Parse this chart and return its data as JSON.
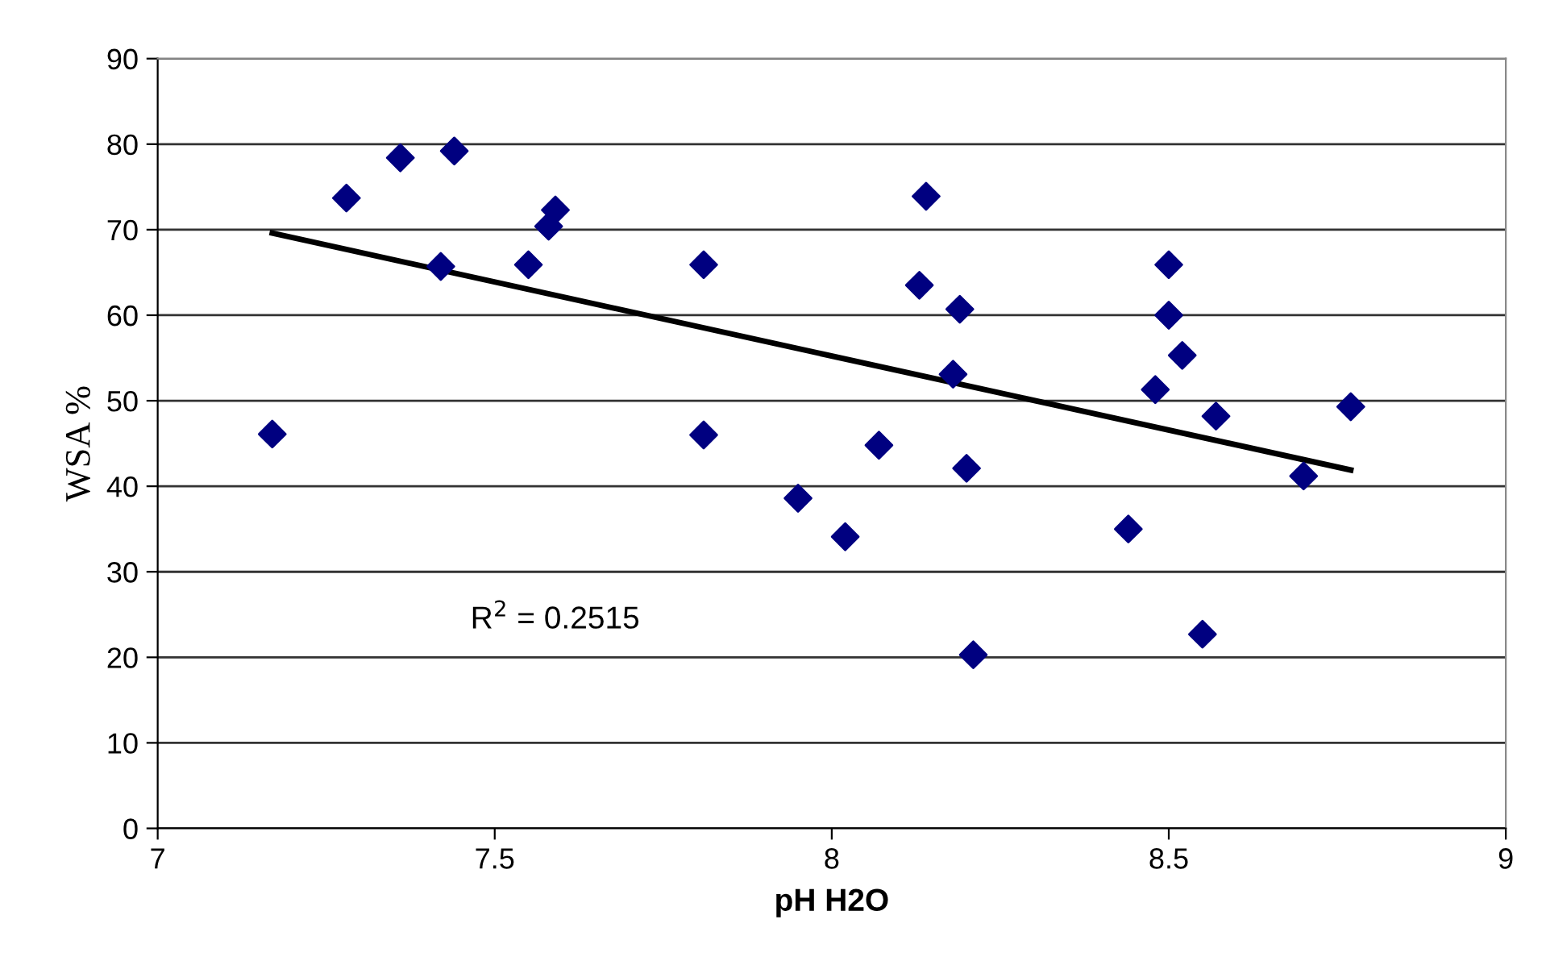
{
  "chart_data": {
    "type": "scatter",
    "xlabel": "pH H2O",
    "ylabel": "WSA %",
    "xlim": [
      7,
      9
    ],
    "xticks": [
      7,
      7.5,
      8,
      8.5,
      9
    ],
    "ylim": [
      0,
      90
    ],
    "yticks": [
      0,
      10,
      20,
      30,
      40,
      50,
      60,
      70,
      80,
      90
    ],
    "grid": "y",
    "marker": "diamond",
    "annotations": [
      "R$^{2}$ = 0.2515"
    ],
    "series": [
      {
        "color": "#000080",
        "x": [
          7.17,
          7.28,
          7.36,
          7.44,
          7.42,
          7.55,
          7.58,
          7.59,
          7.81,
          7.81,
          7.95,
          8.02,
          8.07,
          8.14,
          8.13,
          8.19,
          8.18,
          8.2,
          8.21,
          8.44,
          8.48,
          8.5,
          8.5,
          8.52,
          8.57,
          8.55,
          8.7,
          8.77
        ],
        "values": [
          46.1,
          73.7,
          78.4,
          79.2,
          65.7,
          65.9,
          70.4,
          72.3,
          65.9,
          46.0,
          38.6,
          34.1,
          44.8,
          73.9,
          63.5,
          60.7,
          53.1,
          42.1,
          20.3,
          35.0,
          51.3,
          65.9,
          60.0,
          55.3,
          48.2,
          22.7,
          41.2,
          49.3
        ]
      },
      {
        "type": "line",
        "color": "#000000",
        "marker": "none",
        "x": [
          7.17,
          8.77
        ],
        "values": [
          69.6,
          41.9
        ]
      }
    ]
  }
}
